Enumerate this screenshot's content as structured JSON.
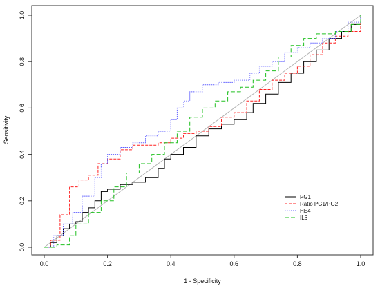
{
  "chart_data": {
    "type": "line",
    "title": "",
    "xlabel": "1 - Specificity",
    "ylabel": "Sensitivity",
    "xlim": [
      0,
      1
    ],
    "ylim": [
      0,
      1
    ],
    "xticks": [
      "0.0",
      "0.2",
      "0.4",
      "0.6",
      "0.8",
      "1.0"
    ],
    "yticks": [
      "0.0",
      "0.2",
      "0.4",
      "0.6",
      "0.8",
      "1.0"
    ],
    "grid": false,
    "legend_position": "bottom-right",
    "reference_line": true,
    "reference_color": "#b3b3b3",
    "series": [
      {
        "name": "PG1",
        "color": "#000000",
        "dash": "solid",
        "points": [
          [
            0,
            0
          ],
          [
            0.02,
            0.02
          ],
          [
            0.04,
            0.05
          ],
          [
            0.06,
            0.08
          ],
          [
            0.08,
            0.1
          ],
          [
            0.1,
            0.11
          ],
          [
            0.12,
            0.15
          ],
          [
            0.14,
            0.17
          ],
          [
            0.16,
            0.2
          ],
          [
            0.18,
            0.24
          ],
          [
            0.2,
            0.25
          ],
          [
            0.24,
            0.27
          ],
          [
            0.28,
            0.28
          ],
          [
            0.32,
            0.3
          ],
          [
            0.36,
            0.34
          ],
          [
            0.38,
            0.38
          ],
          [
            0.4,
            0.4
          ],
          [
            0.44,
            0.43
          ],
          [
            0.48,
            0.48
          ],
          [
            0.52,
            0.51
          ],
          [
            0.56,
            0.53
          ],
          [
            0.6,
            0.55
          ],
          [
            0.64,
            0.58
          ],
          [
            0.66,
            0.62
          ],
          [
            0.7,
            0.66
          ],
          [
            0.74,
            0.71
          ],
          [
            0.78,
            0.75
          ],
          [
            0.82,
            0.8
          ],
          [
            0.86,
            0.85
          ],
          [
            0.9,
            0.9
          ],
          [
            0.94,
            0.93
          ],
          [
            0.97,
            0.96
          ],
          [
            1,
            1
          ]
        ]
      },
      {
        "name": "Ratio PG1/PG2",
        "color": "#ff2020",
        "dash": "4,2",
        "points": [
          [
            0,
            0
          ],
          [
            0.02,
            0.03
          ],
          [
            0.05,
            0.14
          ],
          [
            0.08,
            0.26
          ],
          [
            0.11,
            0.29
          ],
          [
            0.14,
            0.31
          ],
          [
            0.17,
            0.36
          ],
          [
            0.2,
            0.38
          ],
          [
            0.24,
            0.42
          ],
          [
            0.28,
            0.44
          ],
          [
            0.32,
            0.44
          ],
          [
            0.36,
            0.45
          ],
          [
            0.4,
            0.47
          ],
          [
            0.44,
            0.49
          ],
          [
            0.48,
            0.5
          ],
          [
            0.52,
            0.52
          ],
          [
            0.56,
            0.56
          ],
          [
            0.6,
            0.58
          ],
          [
            0.64,
            0.63
          ],
          [
            0.68,
            0.68
          ],
          [
            0.72,
            0.72
          ],
          [
            0.76,
            0.75
          ],
          [
            0.8,
            0.78
          ],
          [
            0.84,
            0.83
          ],
          [
            0.88,
            0.88
          ],
          [
            0.92,
            0.91
          ],
          [
            0.96,
            0.93
          ],
          [
            1,
            1
          ]
        ]
      },
      {
        "name": "HE4",
        "color": "#6060ff",
        "dash": "1.5,1.5",
        "points": [
          [
            0,
            0
          ],
          [
            0.03,
            0.05
          ],
          [
            0.06,
            0.1
          ],
          [
            0.09,
            0.15
          ],
          [
            0.12,
            0.22
          ],
          [
            0.16,
            0.3
          ],
          [
            0.18,
            0.36
          ],
          [
            0.2,
            0.4
          ],
          [
            0.24,
            0.43
          ],
          [
            0.28,
            0.45
          ],
          [
            0.32,
            0.48
          ],
          [
            0.36,
            0.5
          ],
          [
            0.4,
            0.55
          ],
          [
            0.42,
            0.6
          ],
          [
            0.44,
            0.63
          ],
          [
            0.46,
            0.67
          ],
          [
            0.5,
            0.7
          ],
          [
            0.55,
            0.71
          ],
          [
            0.6,
            0.72
          ],
          [
            0.65,
            0.75
          ],
          [
            0.68,
            0.78
          ],
          [
            0.72,
            0.8
          ],
          [
            0.76,
            0.84
          ],
          [
            0.8,
            0.86
          ],
          [
            0.84,
            0.88
          ],
          [
            0.88,
            0.9
          ],
          [
            0.92,
            0.93
          ],
          [
            0.96,
            0.97
          ],
          [
            1,
            1
          ]
        ]
      },
      {
        "name": "IL6",
        "color": "#20c020",
        "dash": "6,3",
        "points": [
          [
            0,
            0
          ],
          [
            0.04,
            0.01
          ],
          [
            0.08,
            0.05
          ],
          [
            0.1,
            0.1
          ],
          [
            0.14,
            0.15
          ],
          [
            0.18,
            0.2
          ],
          [
            0.22,
            0.26
          ],
          [
            0.26,
            0.32
          ],
          [
            0.3,
            0.36
          ],
          [
            0.34,
            0.4
          ],
          [
            0.38,
            0.45
          ],
          [
            0.42,
            0.5
          ],
          [
            0.46,
            0.56
          ],
          [
            0.5,
            0.6
          ],
          [
            0.54,
            0.63
          ],
          [
            0.58,
            0.67
          ],
          [
            0.62,
            0.69
          ],
          [
            0.66,
            0.72
          ],
          [
            0.7,
            0.76
          ],
          [
            0.74,
            0.82
          ],
          [
            0.78,
            0.87
          ],
          [
            0.82,
            0.9
          ],
          [
            0.86,
            0.92
          ],
          [
            0.92,
            0.93
          ],
          [
            0.97,
            0.96
          ],
          [
            1,
            1
          ]
        ]
      }
    ]
  }
}
